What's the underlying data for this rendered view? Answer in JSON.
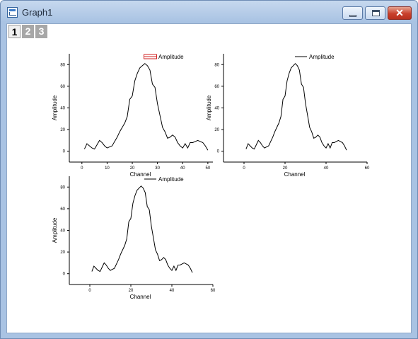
{
  "window": {
    "title": "Graph1",
    "icon": "graph-window-icon",
    "controls": {
      "minimize": "minimize-icon",
      "maximize": "maximize-icon",
      "close": "close-icon",
      "close_color": "#c8402c"
    }
  },
  "tabs": [
    {
      "label": "1",
      "active": true
    },
    {
      "label": "2",
      "active": false
    },
    {
      "label": "3",
      "active": false
    }
  ],
  "chart_data": [
    {
      "type": "line",
      "xlabel": "Channel",
      "ylabel": "Amplitude",
      "legend": {
        "entries": [
          "Amplitude"
        ],
        "placement": "top-right",
        "selected": true,
        "marker_color": "#d22020"
      },
      "xticks": [
        0,
        10,
        20,
        30,
        40,
        50
      ],
      "yticks": [
        0,
        20,
        40,
        60,
        80
      ],
      "xlim": [
        -5,
        52
      ],
      "ylim": [
        -10,
        90
      ],
      "series": [
        {
          "name": "Amplitude",
          "x": [
            1,
            2,
            3,
            4,
            5,
            6,
            7,
            8,
            9,
            10,
            11,
            12,
            13,
            14,
            15,
            16,
            17,
            18,
            19,
            20,
            21,
            22,
            23,
            24,
            25,
            26,
            27,
            28,
            29,
            30,
            31,
            32,
            33,
            34,
            35,
            36,
            37,
            38,
            39,
            40,
            41,
            42,
            43,
            44,
            45,
            46,
            47,
            48,
            49,
            50
          ],
          "y": [
            2,
            7,
            5,
            3,
            2,
            6,
            10,
            8,
            5,
            3,
            4,
            5,
            9,
            13,
            18,
            22,
            26,
            32,
            48,
            51,
            65,
            72,
            77,
            79,
            81,
            79,
            75,
            62,
            59,
            44,
            33,
            22,
            18,
            12,
            13,
            15,
            13,
            8,
            5,
            3,
            7,
            3,
            8,
            8,
            9,
            10,
            9,
            8,
            5,
            1
          ]
        }
      ]
    },
    {
      "type": "line",
      "xlabel": "Channel",
      "ylabel": "Amplitude",
      "legend": {
        "entries": [
          "Amplitude"
        ],
        "placement": "top-right"
      },
      "xticks": [
        0,
        20,
        40,
        60
      ],
      "yticks": [
        0,
        20,
        40,
        60,
        80
      ],
      "xlim": [
        -10,
        60
      ],
      "ylim": [
        -10,
        90
      ],
      "series": [
        {
          "name": "Amplitude",
          "x": [
            1,
            2,
            3,
            4,
            5,
            6,
            7,
            8,
            9,
            10,
            11,
            12,
            13,
            14,
            15,
            16,
            17,
            18,
            19,
            20,
            21,
            22,
            23,
            24,
            25,
            26,
            27,
            28,
            29,
            30,
            31,
            32,
            33,
            34,
            35,
            36,
            37,
            38,
            39,
            40,
            41,
            42,
            43,
            44,
            45,
            46,
            47,
            48,
            49,
            50
          ],
          "y": [
            2,
            7,
            5,
            3,
            2,
            6,
            10,
            8,
            5,
            3,
            4,
            5,
            9,
            13,
            18,
            22,
            26,
            32,
            48,
            51,
            65,
            72,
            77,
            79,
            81,
            79,
            75,
            62,
            59,
            44,
            33,
            22,
            18,
            12,
            13,
            15,
            13,
            8,
            5,
            3,
            7,
            3,
            8,
            8,
            9,
            10,
            9,
            8,
            5,
            1
          ]
        }
      ]
    },
    {
      "type": "line",
      "xlabel": "Channel",
      "ylabel": "Amplitude",
      "legend": {
        "entries": [
          "Amplitude"
        ],
        "placement": "top-right"
      },
      "xticks": [
        0,
        20,
        40,
        60
      ],
      "yticks": [
        0,
        20,
        40,
        60,
        80
      ],
      "xlim": [
        -10,
        60
      ],
      "ylim": [
        -10,
        90
      ],
      "series": [
        {
          "name": "Amplitude",
          "x": [
            1,
            2,
            3,
            4,
            5,
            6,
            7,
            8,
            9,
            10,
            11,
            12,
            13,
            14,
            15,
            16,
            17,
            18,
            19,
            20,
            21,
            22,
            23,
            24,
            25,
            26,
            27,
            28,
            29,
            30,
            31,
            32,
            33,
            34,
            35,
            36,
            37,
            38,
            39,
            40,
            41,
            42,
            43,
            44,
            45,
            46,
            47,
            48,
            49,
            50
          ],
          "y": [
            2,
            7,
            5,
            3,
            2,
            6,
            10,
            8,
            5,
            3,
            4,
            5,
            9,
            13,
            18,
            22,
            26,
            32,
            48,
            51,
            65,
            72,
            77,
            79,
            81,
            79,
            75,
            62,
            59,
            44,
            33,
            22,
            18,
            12,
            13,
            15,
            13,
            8,
            5,
            3,
            7,
            3,
            8,
            8,
            9,
            10,
            9,
            8,
            5,
            1
          ]
        }
      ]
    }
  ]
}
